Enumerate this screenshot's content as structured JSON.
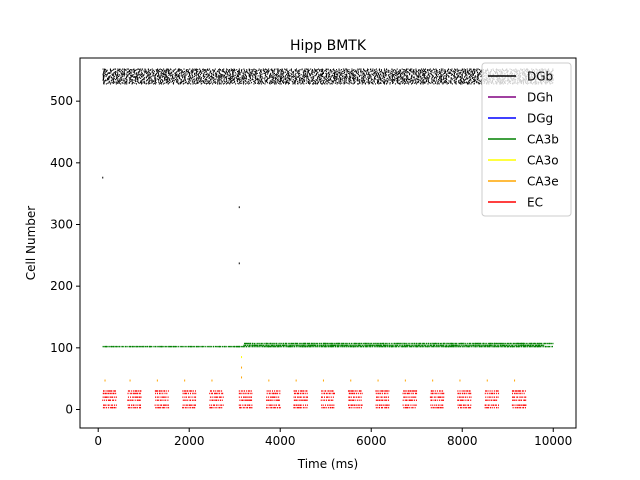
{
  "chart_data": {
    "type": "scatter",
    "title": "Hipp BMTK",
    "xlabel": "Time (ms)",
    "ylabel": "Cell Number",
    "xlim": [
      -400,
      10500
    ],
    "ylim": [
      -30,
      570
    ],
    "xticks": [
      0,
      2000,
      4000,
      6000,
      8000,
      10000
    ],
    "xtick_labels": [
      "0",
      "2000",
      "4000",
      "6000",
      "8000",
      "10000"
    ],
    "yticks": [
      0,
      100,
      200,
      300,
      400,
      500
    ],
    "ytick_labels": [
      "0",
      "100",
      "200",
      "300",
      "400",
      "500"
    ],
    "grid": false,
    "legend_position": "top-right",
    "series": [
      {
        "name": "DGb",
        "color": "#000000",
        "marker": "|",
        "dense_band": {
          "x_range": [
            100,
            10000
          ],
          "y_range": [
            528,
            552
          ]
        },
        "sparse_points": [
          [
            100,
            376
          ],
          [
            3100,
            328
          ],
          [
            3100,
            237
          ]
        ]
      },
      {
        "name": "DGh",
        "color": "#800080",
        "marker": "|",
        "points": []
      },
      {
        "name": "DGg",
        "color": "#0000ff",
        "marker": "|",
        "points": []
      },
      {
        "name": "CA3b",
        "color": "#008000",
        "marker": "|",
        "rows": [
          {
            "y": 102,
            "x_range": [
              100,
              3100
            ]
          },
          {
            "y": 102,
            "x_range": [
              3100,
              10000
            ]
          },
          {
            "y": 104,
            "x_range": [
              3200,
              9800
            ]
          },
          {
            "y": 107,
            "x_range": [
              3200,
              10000
            ]
          }
        ]
      },
      {
        "name": "CA3o",
        "color": "#ffff00",
        "marker": "|",
        "points": [
          [
            3150,
            85
          ]
        ]
      },
      {
        "name": "CA3e",
        "color": "#ffa500",
        "marker": "|",
        "points": [
          [
            150,
            47
          ],
          [
            700,
            47
          ],
          [
            1300,
            47
          ],
          [
            1900,
            47
          ],
          [
            2500,
            47
          ],
          [
            3150,
            68
          ],
          [
            3150,
            52
          ],
          [
            3750,
            47
          ],
          [
            4350,
            47
          ],
          [
            4950,
            47
          ],
          [
            5550,
            47
          ],
          [
            6150,
            47
          ],
          [
            6750,
            47
          ],
          [
            7350,
            47
          ],
          [
            7950,
            47
          ],
          [
            8550,
            47
          ],
          [
            9150,
            47
          ]
        ]
      },
      {
        "name": "EC",
        "color": "#ff0000",
        "marker": "|",
        "burst_starts": [
          100,
          650,
          1250,
          1850,
          2450,
          3100,
          3700,
          4300,
          4900,
          5500,
          6100,
          6700,
          7300,
          7900,
          8500,
          9100
        ],
        "burst_width_ms": 300,
        "cell_rows": [
          3,
          7,
          15,
          20,
          26,
          30
        ]
      }
    ]
  }
}
